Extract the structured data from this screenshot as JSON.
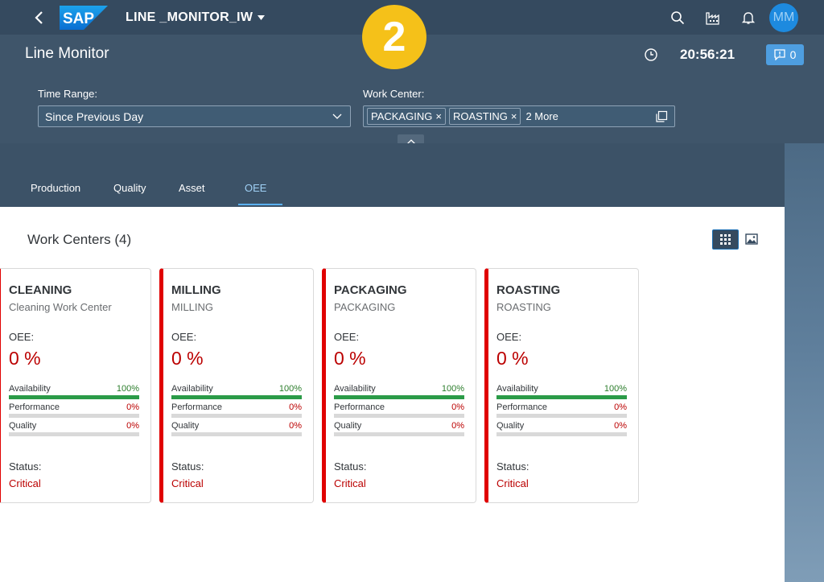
{
  "shell": {
    "app_title": "LINE _MONITOR_IW",
    "logo_text": "SAP",
    "avatar_initials": "MM"
  },
  "step_badge": "2",
  "header": {
    "page_title": "Line Monitor",
    "clock_time": "20:56:21",
    "messages_count": "0"
  },
  "filters": {
    "time_range": {
      "label": "Time Range:",
      "value": "Since Previous Day"
    },
    "work_center": {
      "label": "Work Center:",
      "tokens": [
        "PACKAGING",
        "ROASTING"
      ],
      "more": "2 More"
    }
  },
  "tabs": [
    {
      "label": "Production"
    },
    {
      "label": "Quality"
    },
    {
      "label": "Asset"
    },
    {
      "label": "OEE",
      "selected": true
    }
  ],
  "content": {
    "section_title": "Work Centers (4)",
    "cards": [
      {
        "title": "CLEANING",
        "subtitle": "Cleaning Work Center",
        "oee_label": "OEE:",
        "oee_value": "0 %",
        "metrics": [
          {
            "name": "Availability",
            "value": "100%",
            "fill": 1.0
          },
          {
            "name": "Performance",
            "value": "0%",
            "fill": 0
          },
          {
            "name": "Quality",
            "value": "0%",
            "fill": 0
          }
        ],
        "status_label": "Status:",
        "status_value": "Critical"
      },
      {
        "title": "MILLING",
        "subtitle": "MILLING",
        "oee_label": "OEE:",
        "oee_value": "0 %",
        "metrics": [
          {
            "name": "Availability",
            "value": "100%",
            "fill": 1.0
          },
          {
            "name": "Performance",
            "value": "0%",
            "fill": 0
          },
          {
            "name": "Quality",
            "value": "0%",
            "fill": 0
          }
        ],
        "status_label": "Status:",
        "status_value": "Critical"
      },
      {
        "title": "PACKAGING",
        "subtitle": "PACKAGING",
        "oee_label": "OEE:",
        "oee_value": "0 %",
        "metrics": [
          {
            "name": "Availability",
            "value": "100%",
            "fill": 1.0
          },
          {
            "name": "Performance",
            "value": "0%",
            "fill": 0
          },
          {
            "name": "Quality",
            "value": "0%",
            "fill": 0
          }
        ],
        "status_label": "Status:",
        "status_value": "Critical"
      },
      {
        "title": "ROASTING",
        "subtitle": "ROASTING",
        "oee_label": "OEE:",
        "oee_value": "0 %",
        "metrics": [
          {
            "name": "Availability",
            "value": "100%",
            "fill": 1.0
          },
          {
            "name": "Performance",
            "value": "0%",
            "fill": 0
          },
          {
            "name": "Quality",
            "value": "0%",
            "fill": 0
          }
        ],
        "status_label": "Status:",
        "status_value": "Critical"
      }
    ]
  },
  "colors": {
    "shell": "#354a5f",
    "critical": "#bb0000",
    "good": "#2b9b48",
    "badge": "#f5c119",
    "accent": "#5ab0f0"
  },
  "icons": [
    "back-icon",
    "search-icon",
    "factory-icon",
    "bell-icon",
    "clock-icon",
    "message-icon",
    "chevron-down-icon",
    "value-help-icon",
    "chevron-up-icon",
    "grid-view-icon",
    "image-view-icon"
  ]
}
